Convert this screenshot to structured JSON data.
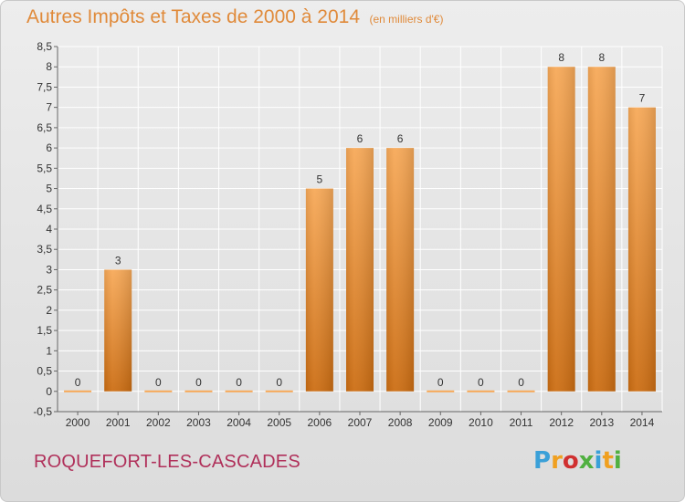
{
  "header": {
    "title": "Autres Impôts et Taxes de 2000 à 2014",
    "unit": "(en milliers d'€)"
  },
  "footer": {
    "commune": "ROQUEFORT-LES-CASCADES",
    "logo_letters": [
      "P",
      "r",
      "o",
      "x",
      "i",
      "t",
      "i"
    ],
    "logo_colors": [
      "#3aa0d8",
      "#f0a020",
      "#d03030",
      "#50b040",
      "#3aa0d8",
      "#f0a020",
      "#50b040"
    ]
  },
  "chart_data": {
    "type": "bar",
    "title": "Autres Impôts et Taxes de 2000 à 2014",
    "subtitle": "(en milliers d'€)",
    "categories": [
      "2000",
      "2001",
      "2002",
      "2003",
      "2004",
      "2005",
      "2006",
      "2007",
      "2008",
      "2009",
      "2010",
      "2011",
      "2012",
      "2013",
      "2014"
    ],
    "values": [
      0,
      3,
      0,
      0,
      0,
      0,
      5,
      6,
      6,
      0,
      0,
      0,
      8,
      8,
      7
    ],
    "ylim": [
      -0.5,
      8.5
    ],
    "yticks": [
      "-0,5",
      "0",
      "0,5",
      "1",
      "1,5",
      "2",
      "2,5",
      "3",
      "3,5",
      "4",
      "4,5",
      "5",
      "5,5",
      "6",
      "6,5",
      "7",
      "7,5",
      "8",
      "8,5"
    ],
    "grid": true,
    "colors": {
      "bar_top": "#f7a958",
      "bar_bottom": "#cc6d12",
      "grid": "#ffffff",
      "axis": "#666666",
      "text": "#333333"
    }
  }
}
